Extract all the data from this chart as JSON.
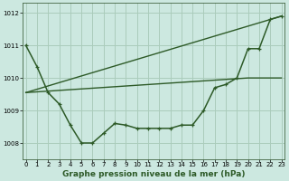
{
  "bg_color": "#cce8e0",
  "grid_color": "#aaccbb",
  "line_color": "#2d5a27",
  "line1_x": [
    0,
    1,
    2,
    3,
    4,
    5,
    6,
    7,
    8,
    9,
    10,
    11,
    12,
    13,
    14,
    15,
    16,
    17,
    18,
    19,
    20,
    21,
    22,
    23
  ],
  "line1_y": [
    1011.0,
    1010.35,
    1009.55,
    1009.2,
    1008.55,
    1008.0,
    1008.0,
    1008.3,
    1008.6,
    1008.55,
    1008.45,
    1008.45,
    1008.45,
    1008.45,
    1008.55,
    1008.55,
    1009.0,
    1009.7,
    1009.8,
    1010.0,
    1010.9,
    1010.9,
    1011.8,
    1011.9
  ],
  "line2_x": [
    0,
    23
  ],
  "line2_y": [
    1009.55,
    1011.9
  ],
  "line3_x": [
    0,
    20,
    23
  ],
  "line3_y": [
    1009.55,
    1010.0,
    1010.0
  ],
  "ylim": [
    1007.5,
    1012.3
  ],
  "xlim": [
    -0.3,
    23.3
  ],
  "yticks": [
    1008,
    1009,
    1010,
    1011,
    1012
  ],
  "xticks": [
    0,
    1,
    2,
    3,
    4,
    5,
    6,
    7,
    8,
    9,
    10,
    11,
    12,
    13,
    14,
    15,
    16,
    17,
    18,
    19,
    20,
    21,
    22,
    23
  ],
  "xlabel": "Graphe pression niveau de la mer (hPa)",
  "xlabel_fontsize": 6.5,
  "tick_fontsize": 5.0
}
